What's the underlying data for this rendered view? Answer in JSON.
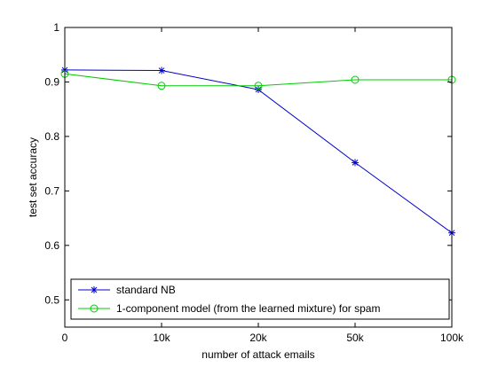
{
  "chart_data": {
    "type": "line",
    "title": "",
    "xlabel": "number of attack emails",
    "ylabel": "test set accuracy",
    "categories": [
      "0",
      "10k",
      "20k",
      "50k",
      "100k"
    ],
    "ylim": [
      0.45,
      1.0
    ],
    "yticks": [
      0.5,
      0.6,
      0.7,
      0.8,
      0.9,
      1.0
    ],
    "ytick_labels": [
      "0.5",
      "0.6",
      "0.7",
      "0.8",
      "0.9",
      "1"
    ],
    "grid": false,
    "legend_position": "bottom-left",
    "series": [
      {
        "name": "standard NB",
        "color": "#0000cc",
        "marker": "asterisk",
        "values": [
          0.922,
          0.921,
          0.886,
          0.752,
          0.623
        ]
      },
      {
        "name": "1-component model (from the learned mixture) for spam",
        "color": "#00cc00",
        "marker": "circle",
        "values": [
          0.915,
          0.893,
          0.893,
          0.904,
          0.904
        ]
      }
    ]
  }
}
